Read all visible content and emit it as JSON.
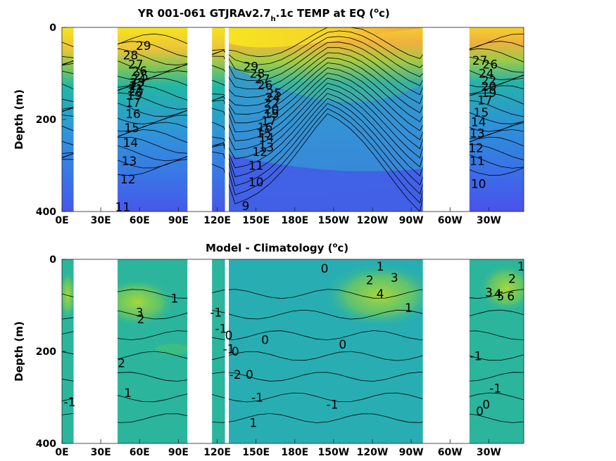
{
  "chart_data": [
    {
      "type": "heatmap",
      "title": "YR 001-061 GTJRAv2.7",
      "title_subscript": "h",
      "title_suffix": ".1c TEMP at EQ (",
      "title_unit_sup": "o",
      "title_unit_end": "c)",
      "ylabel": "Depth (m)",
      "xticks": [
        "0E",
        "30E",
        "60E",
        "90E",
        "120E",
        "150E",
        "180E",
        "150W",
        "120W",
        "90W",
        "60W",
        "30W"
      ],
      "xtick_lon": [
        0,
        30,
        60,
        90,
        120,
        150,
        180,
        210,
        240,
        270,
        300,
        330
      ],
      "yticks": [
        "0",
        "200",
        "400"
      ],
      "ytick_values": [
        0,
        200,
        400
      ],
      "xlim": [
        0,
        357
      ],
      "ylim": [
        400,
        0
      ],
      "colors": {
        "warm": "#f7e41f",
        "warm2": "#f2b43c",
        "mid": "#27b5b0",
        "cool": "#2e8fe0",
        "cold": "#4a4fe8"
      },
      "land_gaps_lon": [
        [
          9,
          43
        ],
        [
          97,
          116
        ],
        [
          126,
          129
        ],
        [
          279,
          315
        ]
      ],
      "contour_labels": [
        {
          "text": "29",
          "lon": 63,
          "depth": 40
        },
        {
          "text": "28",
          "lon": 53,
          "depth": 60
        },
        {
          "text": "27",
          "lon": 57,
          "depth": 80
        },
        {
          "text": "26",
          "lon": 60,
          "depth": 95
        },
        {
          "text": "25",
          "lon": 61,
          "depth": 105
        },
        {
          "text": "24",
          "lon": 59,
          "depth": 113
        },
        {
          "text": "23",
          "lon": 58,
          "depth": 120
        },
        {
          "text": "22",
          "lon": 58,
          "depth": 127
        },
        {
          "text": "21",
          "lon": 57,
          "depth": 133
        },
        {
          "text": "20",
          "lon": 57,
          "depth": 140
        },
        {
          "text": "19",
          "lon": 56,
          "depth": 148
        },
        {
          "text": "17",
          "lon": 55,
          "depth": 163
        },
        {
          "text": "16",
          "lon": 55,
          "depth": 188
        },
        {
          "text": "15",
          "lon": 54,
          "depth": 218
        },
        {
          "text": "14",
          "lon": 53,
          "depth": 250
        },
        {
          "text": "13",
          "lon": 52,
          "depth": 290
        },
        {
          "text": "12",
          "lon": 51,
          "depth": 330
        },
        {
          "text": "11",
          "lon": 47,
          "depth": 390
        },
        {
          "text": "29",
          "lon": 146,
          "depth": 85
        },
        {
          "text": "28",
          "lon": 151,
          "depth": 100
        },
        {
          "text": "27",
          "lon": 155,
          "depth": 112
        },
        {
          "text": "26",
          "lon": 157,
          "depth": 125
        },
        {
          "text": "25",
          "lon": 164,
          "depth": 143
        },
        {
          "text": "24",
          "lon": 163,
          "depth": 152
        },
        {
          "text": "22",
          "lon": 162,
          "depth": 165
        },
        {
          "text": "20",
          "lon": 162,
          "depth": 178
        },
        {
          "text": "19",
          "lon": 162,
          "depth": 188
        },
        {
          "text": "17",
          "lon": 160,
          "depth": 203
        },
        {
          "text": "16",
          "lon": 157,
          "depth": 217
        },
        {
          "text": "15",
          "lon": 156,
          "depth": 230
        },
        {
          "text": "14",
          "lon": 158,
          "depth": 240
        },
        {
          "text": "13",
          "lon": 158,
          "depth": 260
        },
        {
          "text": "12",
          "lon": 153,
          "depth": 270
        },
        {
          "text": "11",
          "lon": 150,
          "depth": 300
        },
        {
          "text": "10",
          "lon": 150,
          "depth": 336
        },
        {
          "text": "9",
          "lon": 142,
          "depth": 388
        },
        {
          "text": "27",
          "lon": 323,
          "depth": 72
        },
        {
          "text": "26",
          "lon": 331,
          "depth": 80
        },
        {
          "text": "24",
          "lon": 328,
          "depth": 100
        },
        {
          "text": "22",
          "lon": 330,
          "depth": 115
        },
        {
          "text": "20",
          "lon": 330,
          "depth": 128
        },
        {
          "text": "19",
          "lon": 330,
          "depth": 142
        },
        {
          "text": "17",
          "lon": 327,
          "depth": 158
        },
        {
          "text": "15",
          "lon": 324,
          "depth": 185
        },
        {
          "text": "14",
          "lon": 322,
          "depth": 205
        },
        {
          "text": "13",
          "lon": 321,
          "depth": 230
        },
        {
          "text": "12",
          "lon": 320,
          "depth": 262
        },
        {
          "text": "11",
          "lon": 321,
          "depth": 290
        },
        {
          "text": "10",
          "lon": 322,
          "depth": 340
        }
      ]
    },
    {
      "type": "heatmap",
      "title": "Model - Climatology (",
      "title_unit_sup": "o",
      "title_unit_end": "c)",
      "ylabel": "Depth (m)",
      "xticks": [
        "0E",
        "30E",
        "60E",
        "90E",
        "120E",
        "150E",
        "180E",
        "150W",
        "120W",
        "90W",
        "60W",
        "30W"
      ],
      "xtick_lon": [
        0,
        30,
        60,
        90,
        120,
        150,
        180,
        210,
        240,
        270,
        300,
        330
      ],
      "yticks": [
        "0",
        "200",
        "400"
      ],
      "ytick_values": [
        0,
        200,
        400
      ],
      "xlim": [
        0,
        357
      ],
      "ylim": [
        400,
        0
      ],
      "colors": {
        "base": "#27b59c",
        "pos1": "#5ec56a",
        "pos2": "#9fd63e",
        "neg": "#2aa7b8"
      },
      "land_gaps_lon": [
        [
          9,
          43
        ],
        [
          97,
          116
        ],
        [
          126,
          129
        ],
        [
          279,
          315
        ]
      ],
      "contour_labels": [
        {
          "text": "1",
          "lon": 87,
          "depth": 85
        },
        {
          "text": "3",
          "lon": 60,
          "depth": 115
        },
        {
          "text": "2",
          "lon": 61,
          "depth": 130
        },
        {
          "text": "2",
          "lon": 46,
          "depth": 225
        },
        {
          "text": "1",
          "lon": 51,
          "depth": 290
        },
        {
          "text": "-1",
          "lon": 6,
          "depth": 310
        },
        {
          "text": "-1",
          "lon": 119,
          "depth": 115
        },
        {
          "text": "-1",
          "lon": 123,
          "depth": 150
        },
        {
          "text": "0",
          "lon": 129,
          "depth": 165
        },
        {
          "text": "-1",
          "lon": 129,
          "depth": 195
        },
        {
          "text": "0",
          "lon": 134,
          "depth": 200
        },
        {
          "text": "0",
          "lon": 157,
          "depth": 175
        },
        {
          "text": "-2",
          "lon": 134,
          "depth": 250
        },
        {
          "text": "0",
          "lon": 145,
          "depth": 250
        },
        {
          "text": "-1",
          "lon": 151,
          "depth": 300
        },
        {
          "text": "1",
          "lon": 148,
          "depth": 355
        },
        {
          "text": "0",
          "lon": 203,
          "depth": 20
        },
        {
          "text": "1",
          "lon": 246,
          "depth": 15
        },
        {
          "text": "2",
          "lon": 238,
          "depth": 45
        },
        {
          "text": "3",
          "lon": 257,
          "depth": 40
        },
        {
          "text": "4",
          "lon": 246,
          "depth": 75
        },
        {
          "text": "1",
          "lon": 268,
          "depth": 105
        },
        {
          "text": "0",
          "lon": 217,
          "depth": 185
        },
        {
          "text": "-1",
          "lon": 209,
          "depth": 315
        },
        {
          "text": "-1",
          "lon": 335,
          "depth": 280
        },
        {
          "text": "1",
          "lon": 355,
          "depth": 15
        },
        {
          "text": "2",
          "lon": 348,
          "depth": 42
        },
        {
          "text": "3",
          "lon": 330,
          "depth": 72
        },
        {
          "text": "4",
          "lon": 337,
          "depth": 75
        },
        {
          "text": "5",
          "lon": 339,
          "depth": 80
        },
        {
          "text": "6",
          "lon": 347,
          "depth": 80
        },
        {
          "text": "-1",
          "lon": 320,
          "depth": 210
        },
        {
          "text": "0",
          "lon": 328,
          "depth": 315
        },
        {
          "text": "0",
          "lon": 323,
          "depth": 330
        }
      ]
    }
  ]
}
